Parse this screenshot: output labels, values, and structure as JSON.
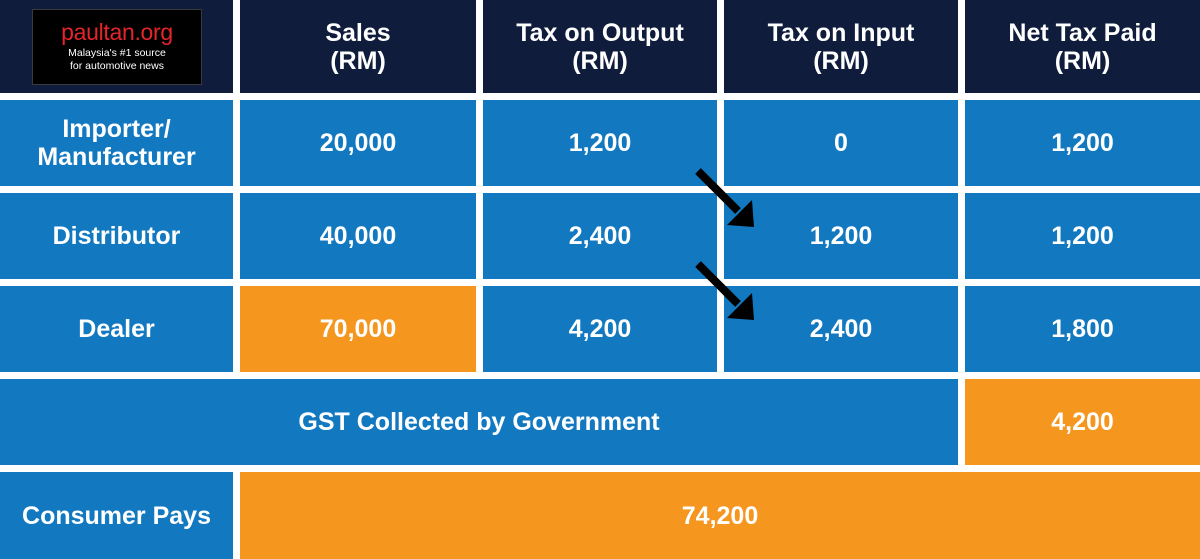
{
  "logo": {
    "brand": "paultan.org",
    "tagline_line1": "Malaysia's #1 source",
    "tagline_line2": "for automotive news"
  },
  "header": {
    "sales": [
      "Sales",
      "(RM)"
    ],
    "tax_output": [
      "Tax on Output",
      "(RM)"
    ],
    "tax_input": [
      "Tax on Input",
      "(RM)"
    ],
    "net_tax": [
      "Net Tax Paid",
      "(RM)"
    ]
  },
  "rows": [
    {
      "label_line1": "Importer/",
      "label_line2": "Manufacturer",
      "sales": "20,000",
      "tax_output": "1,200",
      "tax_input": "0",
      "net_tax": "1,200"
    },
    {
      "label": "Distributor",
      "sales": "40,000",
      "tax_output": "2,400",
      "tax_input": "1,200",
      "net_tax": "1,200"
    },
    {
      "label": "Dealer",
      "sales": "70,000",
      "tax_output": "4,200",
      "tax_input": "2,400",
      "net_tax": "1,800"
    }
  ],
  "gst": {
    "label": "GST Collected by Government",
    "value": "4,200"
  },
  "consumer": {
    "label": "Consumer Pays",
    "value": "74,200"
  },
  "colors": {
    "navy": "#0f1c3c",
    "blue": "#1279c1",
    "orange": "#f5961f",
    "arrow": "#000000"
  }
}
